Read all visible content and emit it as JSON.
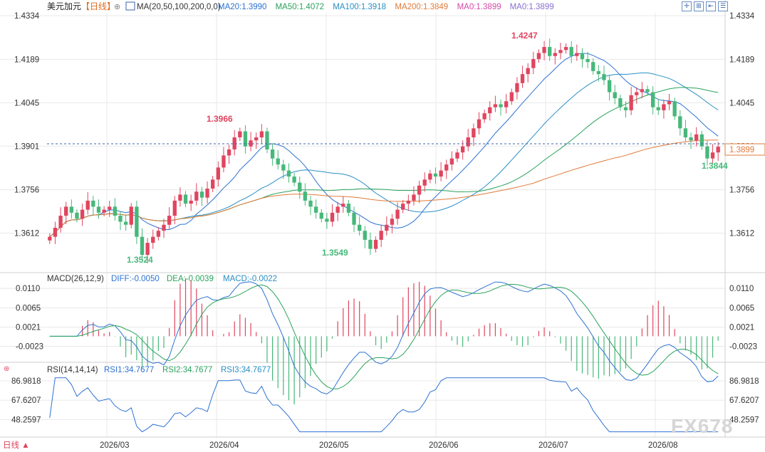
{
  "header": {
    "symbol": "美元加元",
    "period": "【日线】",
    "ma_params": "MA(20,50,100,200,0,0)",
    "ma_items": [
      {
        "label": "MA20:1.3990",
        "color": "#2e72d2"
      },
      {
        "label": "MA50:1.4072",
        "color": "#2aa35c"
      },
      {
        "label": "MA100:1.3918",
        "color": "#2a8fc4"
      },
      {
        "label": "MA200:1.3849",
        "color": "#e07b39"
      },
      {
        "label": "MA0:1.3899",
        "color": "#d34aa8"
      },
      {
        "label": "MA0:1.3899",
        "color": "#8a6fd1"
      }
    ]
  },
  "toolbar": {
    "icons": [
      "crosshair-icon",
      "zoom-in-icon",
      "fit-icon",
      "settings-icon"
    ]
  },
  "price_panel": {
    "ticks": [
      "1.4334",
      "1.4189",
      "1.4045",
      "1.3901",
      "1.3756",
      "1.3612"
    ],
    "current_price": "1.3899",
    "annotations": {
      "high1": "1.3966",
      "high2": "1.4247",
      "low1": "1.3524",
      "low2": "1.3549",
      "low3": "1.3844"
    }
  },
  "macd_panel": {
    "title": "MACD(26,12,9)",
    "diff": "DIFF:-0.0050",
    "dea": "DEA:-0.0039",
    "macd": "MACD:-0.0022",
    "ticks": [
      "0.0110",
      "0.0065",
      "0.0021",
      "-0.0023"
    ]
  },
  "rsi_panel": {
    "title": "RSI(14,14,14)",
    "rsi1": "RSI1:34.7677",
    "rsi2": "RSI2:34.7677",
    "rsi3": "RSI3:34.7677",
    "ticks": [
      "86.9818",
      "67.6207",
      "48.2597"
    ]
  },
  "x_axis": {
    "labels": [
      "2026/03",
      "2026/04",
      "2026/05",
      "2026/06",
      "2026/07",
      "2026/08"
    ]
  },
  "footer": {
    "period_button": "日线 ▲"
  },
  "watermark": "FX678",
  "colors": {
    "up": "#e0455f",
    "down": "#47b87a",
    "grid": "#e8e8e8"
  },
  "chart_data": {
    "type": "candlestick",
    "price_ylim": [
      1.35,
      1.4334
    ],
    "closes": [
      1.36,
      1.363,
      1.367,
      1.37,
      1.368,
      1.366,
      1.369,
      1.372,
      1.37,
      1.368,
      1.369,
      1.37,
      1.367,
      1.365,
      1.364,
      1.37,
      1.36,
      1.354,
      1.358,
      1.36,
      1.362,
      1.364,
      1.367,
      1.372,
      1.374,
      1.371,
      1.372,
      1.375,
      1.373,
      1.376,
      1.379,
      1.383,
      1.387,
      1.389,
      1.393,
      1.395,
      1.39,
      1.392,
      1.393,
      1.395,
      1.389,
      1.386,
      1.384,
      1.382,
      1.38,
      1.378,
      1.375,
      1.372,
      1.37,
      1.368,
      1.366,
      1.365,
      1.368,
      1.37,
      1.371,
      1.368,
      1.364,
      1.362,
      1.359,
      1.356,
      1.359,
      1.362,
      1.364,
      1.366,
      1.369,
      1.371,
      1.372,
      1.374,
      1.377,
      1.379,
      1.381,
      1.38,
      1.382,
      1.384,
      1.386,
      1.388,
      1.39,
      1.393,
      1.396,
      1.399,
      1.401,
      1.403,
      1.404,
      1.403,
      1.405,
      1.408,
      1.411,
      1.414,
      1.416,
      1.419,
      1.421,
      1.423,
      1.42,
      1.421,
      1.422,
      1.423,
      1.42,
      1.421,
      1.419,
      1.418,
      1.415,
      1.414,
      1.412,
      1.408,
      1.406,
      1.403,
      1.402,
      1.407,
      1.408,
      1.409,
      1.408,
      1.403,
      1.402,
      1.404,
      1.405,
      1.4,
      1.396,
      1.393,
      1.392,
      1.394,
      1.39,
      1.386,
      1.388,
      1.3899
    ],
    "highs_labels": [
      {
        "value": 1.3966,
        "index": 35
      },
      {
        "value": 1.4247,
        "index": 91
      }
    ],
    "lows_labels": [
      {
        "value": 1.3524,
        "index": 17
      },
      {
        "value": 1.3549,
        "index": 59
      },
      {
        "value": 1.3844,
        "index": 122
      }
    ],
    "rsi_ylim": [
      35,
      92
    ]
  }
}
